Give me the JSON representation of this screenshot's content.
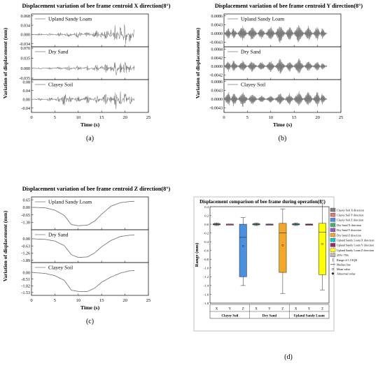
{
  "chart_data": [
    {
      "id": "a",
      "type": "line",
      "title": "Displacement variation of bee frame centroid X direction(8°)",
      "xlabel": "Time (s)",
      "ylabel": "Variation of displacement (mm)",
      "panel_label": "(a)",
      "xlim": [
        0,
        25
      ],
      "xticks": [
        "0",
        "5",
        "10",
        "15",
        "20",
        "25"
      ],
      "subplots": [
        {
          "name": "Upland Sandy Loam",
          "ylim": [
            -0.045,
            0.075
          ],
          "yticks": [
            "0.068",
            "0.034",
            "0.000",
            "-0.034"
          ],
          "points": [
            [
              0,
              0
            ],
            [
              2,
              0.004
            ],
            [
              4,
              -0.006
            ],
            [
              6,
              0.008
            ],
            [
              8,
              -0.01
            ],
            [
              10,
              0.014
            ],
            [
              12,
              -0.012
            ],
            [
              14,
              0.02
            ],
            [
              15,
              -0.016
            ],
            [
              16,
              0.03
            ],
            [
              17,
              -0.02
            ],
            [
              18,
              0.045
            ],
            [
              19,
              -0.035
            ],
            [
              20,
              0.05
            ],
            [
              21,
              -0.03
            ],
            [
              22,
              0.02
            ]
          ]
        },
        {
          "name": "Dry Sand",
          "ylim": [
            -0.04,
            0.075
          ],
          "yticks": [
            "0.070",
            "0.035",
            "0.000",
            "-0.035"
          ],
          "points": [
            [
              0,
              0
            ],
            [
              2,
              0.003
            ],
            [
              4,
              -0.004
            ],
            [
              6,
              0.006
            ],
            [
              8,
              -0.008
            ],
            [
              10,
              0.01
            ],
            [
              12,
              -0.01
            ],
            [
              14,
              0.015
            ],
            [
              15,
              -0.012
            ],
            [
              16,
              0.02
            ],
            [
              17,
              -0.015
            ],
            [
              18,
              0.04
            ],
            [
              19,
              -0.025
            ],
            [
              20,
              0.035
            ],
            [
              21,
              -0.02
            ],
            [
              22,
              0.015
            ]
          ]
        },
        {
          "name": "Clayey Soil",
          "ylim": [
            -0.06,
            0.09
          ],
          "yticks": [
            "0.08",
            "0.04",
            "0.00",
            "-0.04"
          ],
          "points": [
            [
              0,
              0
            ],
            [
              2,
              0.005
            ],
            [
              4,
              -0.01
            ],
            [
              6,
              0.015
            ],
            [
              7,
              -0.04
            ],
            [
              8,
              0.02
            ],
            [
              10,
              -0.015
            ],
            [
              12,
              0.02
            ],
            [
              14,
              -0.02
            ],
            [
              16,
              0.03
            ],
            [
              17,
              -0.025
            ],
            [
              18,
              0.05
            ],
            [
              19,
              -0.04
            ],
            [
              20,
              0.04
            ],
            [
              21,
              -0.03
            ],
            [
              22,
              0.01
            ]
          ]
        }
      ]
    },
    {
      "id": "b",
      "type": "line",
      "title": "Displacement variation of bee frame centroid Y direction(8°)",
      "xlabel": "Time (s)",
      "ylabel": "Variation of displacement (mm)",
      "panel_label": "(b)",
      "xlim": [
        0,
        25
      ],
      "xticks": [
        "0",
        "5",
        "10",
        "15",
        "20",
        "25"
      ],
      "subplots": [
        {
          "name": "Upland Sandy Loam",
          "ylim": [
            -0.0065,
            0.0095
          ],
          "yticks": [
            "0.0086",
            "0.0043",
            "0.0000",
            "-0.0043"
          ],
          "points": [
            [
              0,
              0
            ],
            [
              1,
              0.003
            ],
            [
              2,
              -0.003
            ],
            [
              4,
              0.004
            ],
            [
              6,
              -0.004
            ],
            [
              8,
              0.003
            ],
            [
              10,
              -0.004
            ],
            [
              12,
              0.005
            ],
            [
              14,
              -0.004
            ],
            [
              16,
              0.005
            ],
            [
              18,
              -0.004
            ],
            [
              20,
              0.004
            ],
            [
              21,
              -0.003
            ],
            [
              22,
              0.0005
            ]
          ]
        },
        {
          "name": "Dry Sand",
          "ylim": [
            -0.0065,
            0.0095
          ],
          "yticks": [
            "0.0084",
            "0.0042",
            "0.0000",
            "-0.0042"
          ],
          "points": [
            [
              0,
              0
            ],
            [
              1,
              0.003
            ],
            [
              2,
              -0.003
            ],
            [
              4,
              0.003
            ],
            [
              6,
              -0.003
            ],
            [
              8,
              0.0025
            ],
            [
              10,
              -0.003
            ],
            [
              12,
              0.004
            ],
            [
              14,
              -0.003
            ],
            [
              16,
              0.004
            ],
            [
              18,
              -0.003
            ],
            [
              20,
              0.003
            ],
            [
              21,
              -0.002
            ],
            [
              22,
              0.0005
            ]
          ]
        },
        {
          "name": "Clayey Soil",
          "ylim": [
            -0.0065,
            0.0095
          ],
          "yticks": [
            "0.0086",
            "0.0043",
            "0.0000",
            "-0.0043"
          ],
          "points": [
            [
              0,
              0
            ],
            [
              1,
              0.004
            ],
            [
              2,
              -0.004
            ],
            [
              4,
              0.004
            ],
            [
              6,
              -0.003
            ],
            [
              8,
              0.002
            ],
            [
              10,
              -0.002
            ],
            [
              12,
              0.003
            ],
            [
              14,
              -0.003
            ],
            [
              16,
              0.004
            ],
            [
              18,
              -0.004
            ],
            [
              20,
              0.004
            ],
            [
              21,
              -0.003
            ],
            [
              22,
              0.0005
            ]
          ]
        }
      ]
    },
    {
      "id": "c",
      "type": "line",
      "title": "Displacement variation of bee frame centroid Z direction(8°)",
      "xlabel": "Time (s)",
      "ylabel": "Variation of displacement (mm)",
      "panel_label": "(c)",
      "xlim": [
        0,
        25
      ],
      "xticks": [
        "0",
        "5",
        "10",
        "15",
        "20",
        "25"
      ],
      "subplots": [
        {
          "name": "Upland Sandy Loam",
          "ylim": [
            -1.95,
            0.9
          ],
          "yticks": [
            "0.65",
            "0.00",
            "-0.65",
            "-1.30"
          ],
          "points": [
            [
              0,
              0
            ],
            [
              3,
              -0.05
            ],
            [
              5,
              -0.25
            ],
            [
              7,
              -0.7
            ],
            [
              8.5,
              -1.5
            ],
            [
              10,
              -1.6
            ],
            [
              12,
              -1.55
            ],
            [
              13.5,
              -1.2
            ],
            [
              15,
              -0.6
            ],
            [
              17,
              0.1
            ],
            [
              19,
              0.4
            ],
            [
              21,
              0.5
            ],
            [
              22,
              0.52
            ]
          ]
        },
        {
          "name": "Dry Sand",
          "ylim": [
            -2.1,
            0.8
          ],
          "yticks": [
            "0.00",
            "-0.63",
            "-1.26",
            "-1.89"
          ],
          "points": [
            [
              0,
              0
            ],
            [
              3,
              -0.05
            ],
            [
              5,
              -0.2
            ],
            [
              7,
              -0.6
            ],
            [
              8.5,
              -1.4
            ],
            [
              10,
              -1.65
            ],
            [
              12,
              -1.6
            ],
            [
              13.5,
              -1.25
            ],
            [
              15,
              -0.7
            ],
            [
              17,
              -0.15
            ],
            [
              19,
              0.2
            ],
            [
              21,
              0.32
            ],
            [
              22,
              0.33
            ]
          ]
        },
        {
          "name": "Clayey Soil",
          "ylim": [
            -1.75,
            0.75
          ],
          "yticks": [
            "0.00",
            "-0.51",
            "-1.02",
            "-1.53"
          ],
          "points": [
            [
              0,
              0
            ],
            [
              3,
              -0.08
            ],
            [
              5,
              -0.25
            ],
            [
              7,
              -0.6
            ],
            [
              8.5,
              -1.35
            ],
            [
              10,
              -1.45
            ],
            [
              12,
              -1.45
            ],
            [
              13.5,
              -1.2
            ],
            [
              15,
              -0.75
            ],
            [
              17,
              -0.35
            ],
            [
              19,
              -0.05
            ],
            [
              21,
              0.12
            ],
            [
              22,
              0.14
            ]
          ]
        }
      ]
    },
    {
      "id": "d",
      "type": "box",
      "title": "Displacement comparison of bee frame during operation(8°)",
      "ylabel": "Range (mm)",
      "panel_label": "(d)",
      "ylim": [
        -1.8,
        0.4
      ],
      "yticks": [
        "0.4",
        "0.2",
        "0.0",
        "-0.2",
        "-0.4",
        "-0.6",
        "-0.8",
        "-1.0",
        "-1.2",
        "-1.4",
        "-1.6",
        "-1.8"
      ],
      "groups": [
        "Clayey Soil",
        "Dry Sand",
        "Upland Sandy Loam"
      ],
      "direction_labels": [
        "X",
        "Y",
        "Z"
      ],
      "boxes": [
        {
          "name": "Clayey Soil X direction",
          "color": "#808080",
          "group": 0,
          "dir": 0,
          "q1": -0.01,
          "median": 0,
          "q3": 0.01,
          "whisker_low": -0.03,
          "whisker_high": 0.03,
          "mean": 0
        },
        {
          "name": "Clayey Soil Y direction",
          "color": "#e8737a",
          "group": 0,
          "dir": 1,
          "q1": -0.002,
          "median": 0,
          "q3": 0.002,
          "whisker_low": -0.005,
          "whisker_high": 0.005,
          "mean": 0
        },
        {
          "name": "Clayey Soil Z direction",
          "color": "#4a90e2",
          "group": 0,
          "dir": 2,
          "q1": -1.2,
          "median": -0.3,
          "q3": 0.0,
          "whisker_low": -1.4,
          "whisker_high": 0.15,
          "mean": -0.5
        },
        {
          "name": "Dry Sand X direction",
          "color": "#3cb371",
          "group": 1,
          "dir": 0,
          "q1": -0.01,
          "median": 0,
          "q3": 0.01,
          "whisker_low": -0.03,
          "whisker_high": 0.03,
          "mean": 0
        },
        {
          "name": "Dry Sand Y direction",
          "color": "#9b59b6",
          "group": 1,
          "dir": 1,
          "q1": -0.002,
          "median": 0,
          "q3": 0.002,
          "whisker_low": -0.005,
          "whisker_high": 0.005,
          "mean": 0
        },
        {
          "name": "Dry Sand Z direction",
          "color": "#f5a623",
          "group": 1,
          "dir": 2,
          "q1": -1.1,
          "median": -0.2,
          "q3": 0.02,
          "whisker_low": -1.58,
          "whisker_high": 0.35,
          "mean": -0.48
        },
        {
          "name": "Upland Sandy Loam X direction",
          "color": "#00ced1",
          "group": 2,
          "dir": 0,
          "q1": -0.01,
          "median": 0,
          "q3": 0.01,
          "whisker_low": -0.03,
          "whisker_high": 0.03,
          "mean": 0
        },
        {
          "name": "Upland Sandy Loam Y direction",
          "color": "#a0256f",
          "group": 2,
          "dir": 1,
          "q1": -0.002,
          "median": 0,
          "q3": 0.002,
          "whisker_low": -0.005,
          "whisker_high": 0.005,
          "mean": 0
        },
        {
          "name": "Upland Sandy Loam Z direction",
          "color": "#ffff00",
          "group": 2,
          "dir": 2,
          "q1": -1.15,
          "median": -0.18,
          "q3": 0.02,
          "whisker_low": -1.5,
          "whisker_high": 0.48,
          "mean": -0.45
        }
      ],
      "legend_extra": [
        "25%~75%",
        "Range of 1.5 IQR",
        "Median line",
        "Mean value",
        "Abnormal value"
      ]
    }
  ]
}
